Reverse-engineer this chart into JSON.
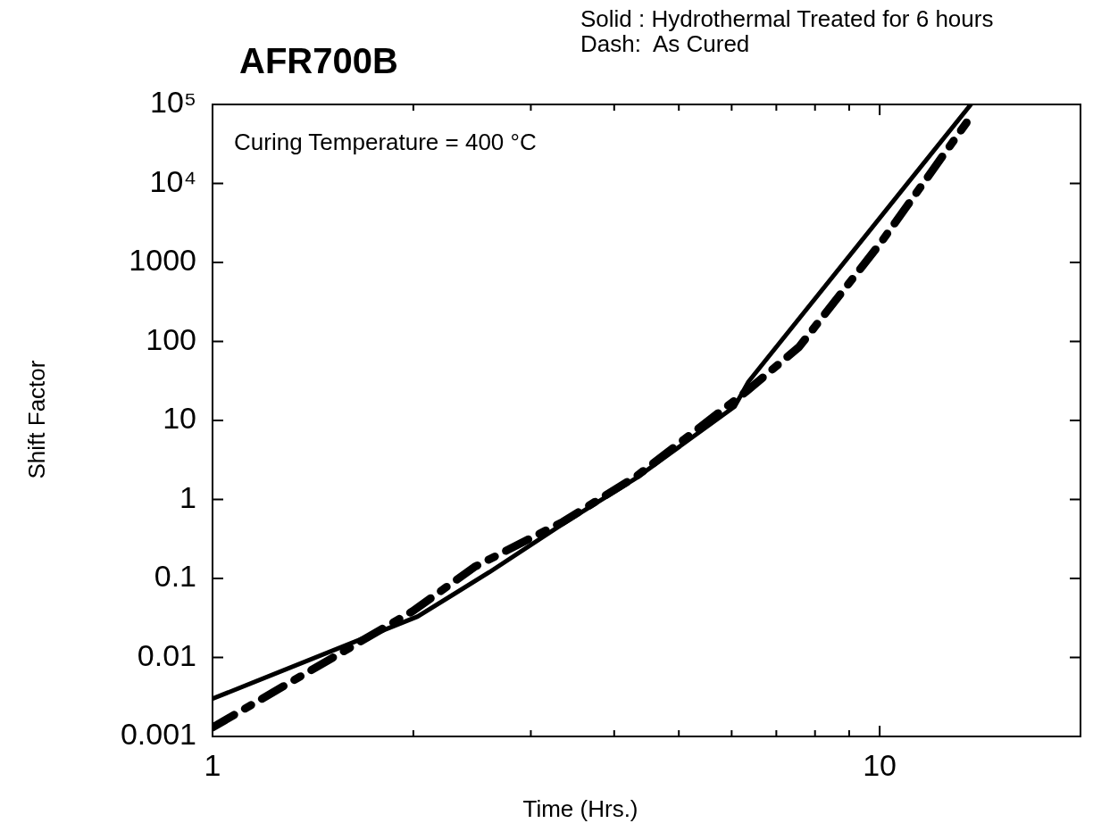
{
  "chart_data": {
    "type": "line",
    "title": "AFR700B",
    "xlabel": "Time (Hrs.)",
    "ylabel": "Shift Factor",
    "annotations": [
      "Solid : Hydrothermal Treated for 6 hours",
      "Dash:  As Cured",
      "Curing Temperature = 400 °C"
    ],
    "log": "xy",
    "grid": false,
    "legend": false,
    "marker": "none",
    "xlim": [
      1,
      20
    ],
    "ylim": [
      0.001,
      100000
    ],
    "xticks": [
      1,
      {
        "value": 2,
        "label": null
      },
      {
        "value": 3,
        "label": null
      },
      {
        "value": 4,
        "label": null
      },
      {
        "value": 5,
        "label": null
      },
      {
        "value": 6,
        "label": null
      },
      {
        "value": 7,
        "label": null
      },
      {
        "value": 8,
        "label": null
      },
      {
        "value": 9,
        "label": null
      },
      10,
      {
        "value": 20,
        "label": null
      }
    ],
    "yticks": [
      0.001,
      0.01,
      0.1,
      1,
      10,
      100,
      1000,
      {
        "value": 10000,
        "label": "10⁴"
      },
      {
        "value": 100000,
        "label": "10⁵"
      }
    ],
    "series": [
      {
        "color": "#000000",
        "line_style": "solid",
        "x": [
          1,
          2.03,
          2.6,
          3.35,
          4.33,
          6.06,
          6.36,
          13.7
        ],
        "values": [
          0.003,
          0.033,
          0.12,
          0.49,
          1.9,
          15,
          31,
          100000
        ]
      },
      {
        "color": "#000000",
        "line_style": "dashed",
        "x": [
          1,
          1.51,
          2.0,
          2.47,
          3.35,
          4.33,
          6.3,
          7.57,
          10.04,
          13.5
        ],
        "values": [
          0.0013,
          0.0098,
          0.039,
          0.14,
          0.52,
          2.0,
          23,
          85,
          1780,
          59000
        ]
      }
    ]
  }
}
